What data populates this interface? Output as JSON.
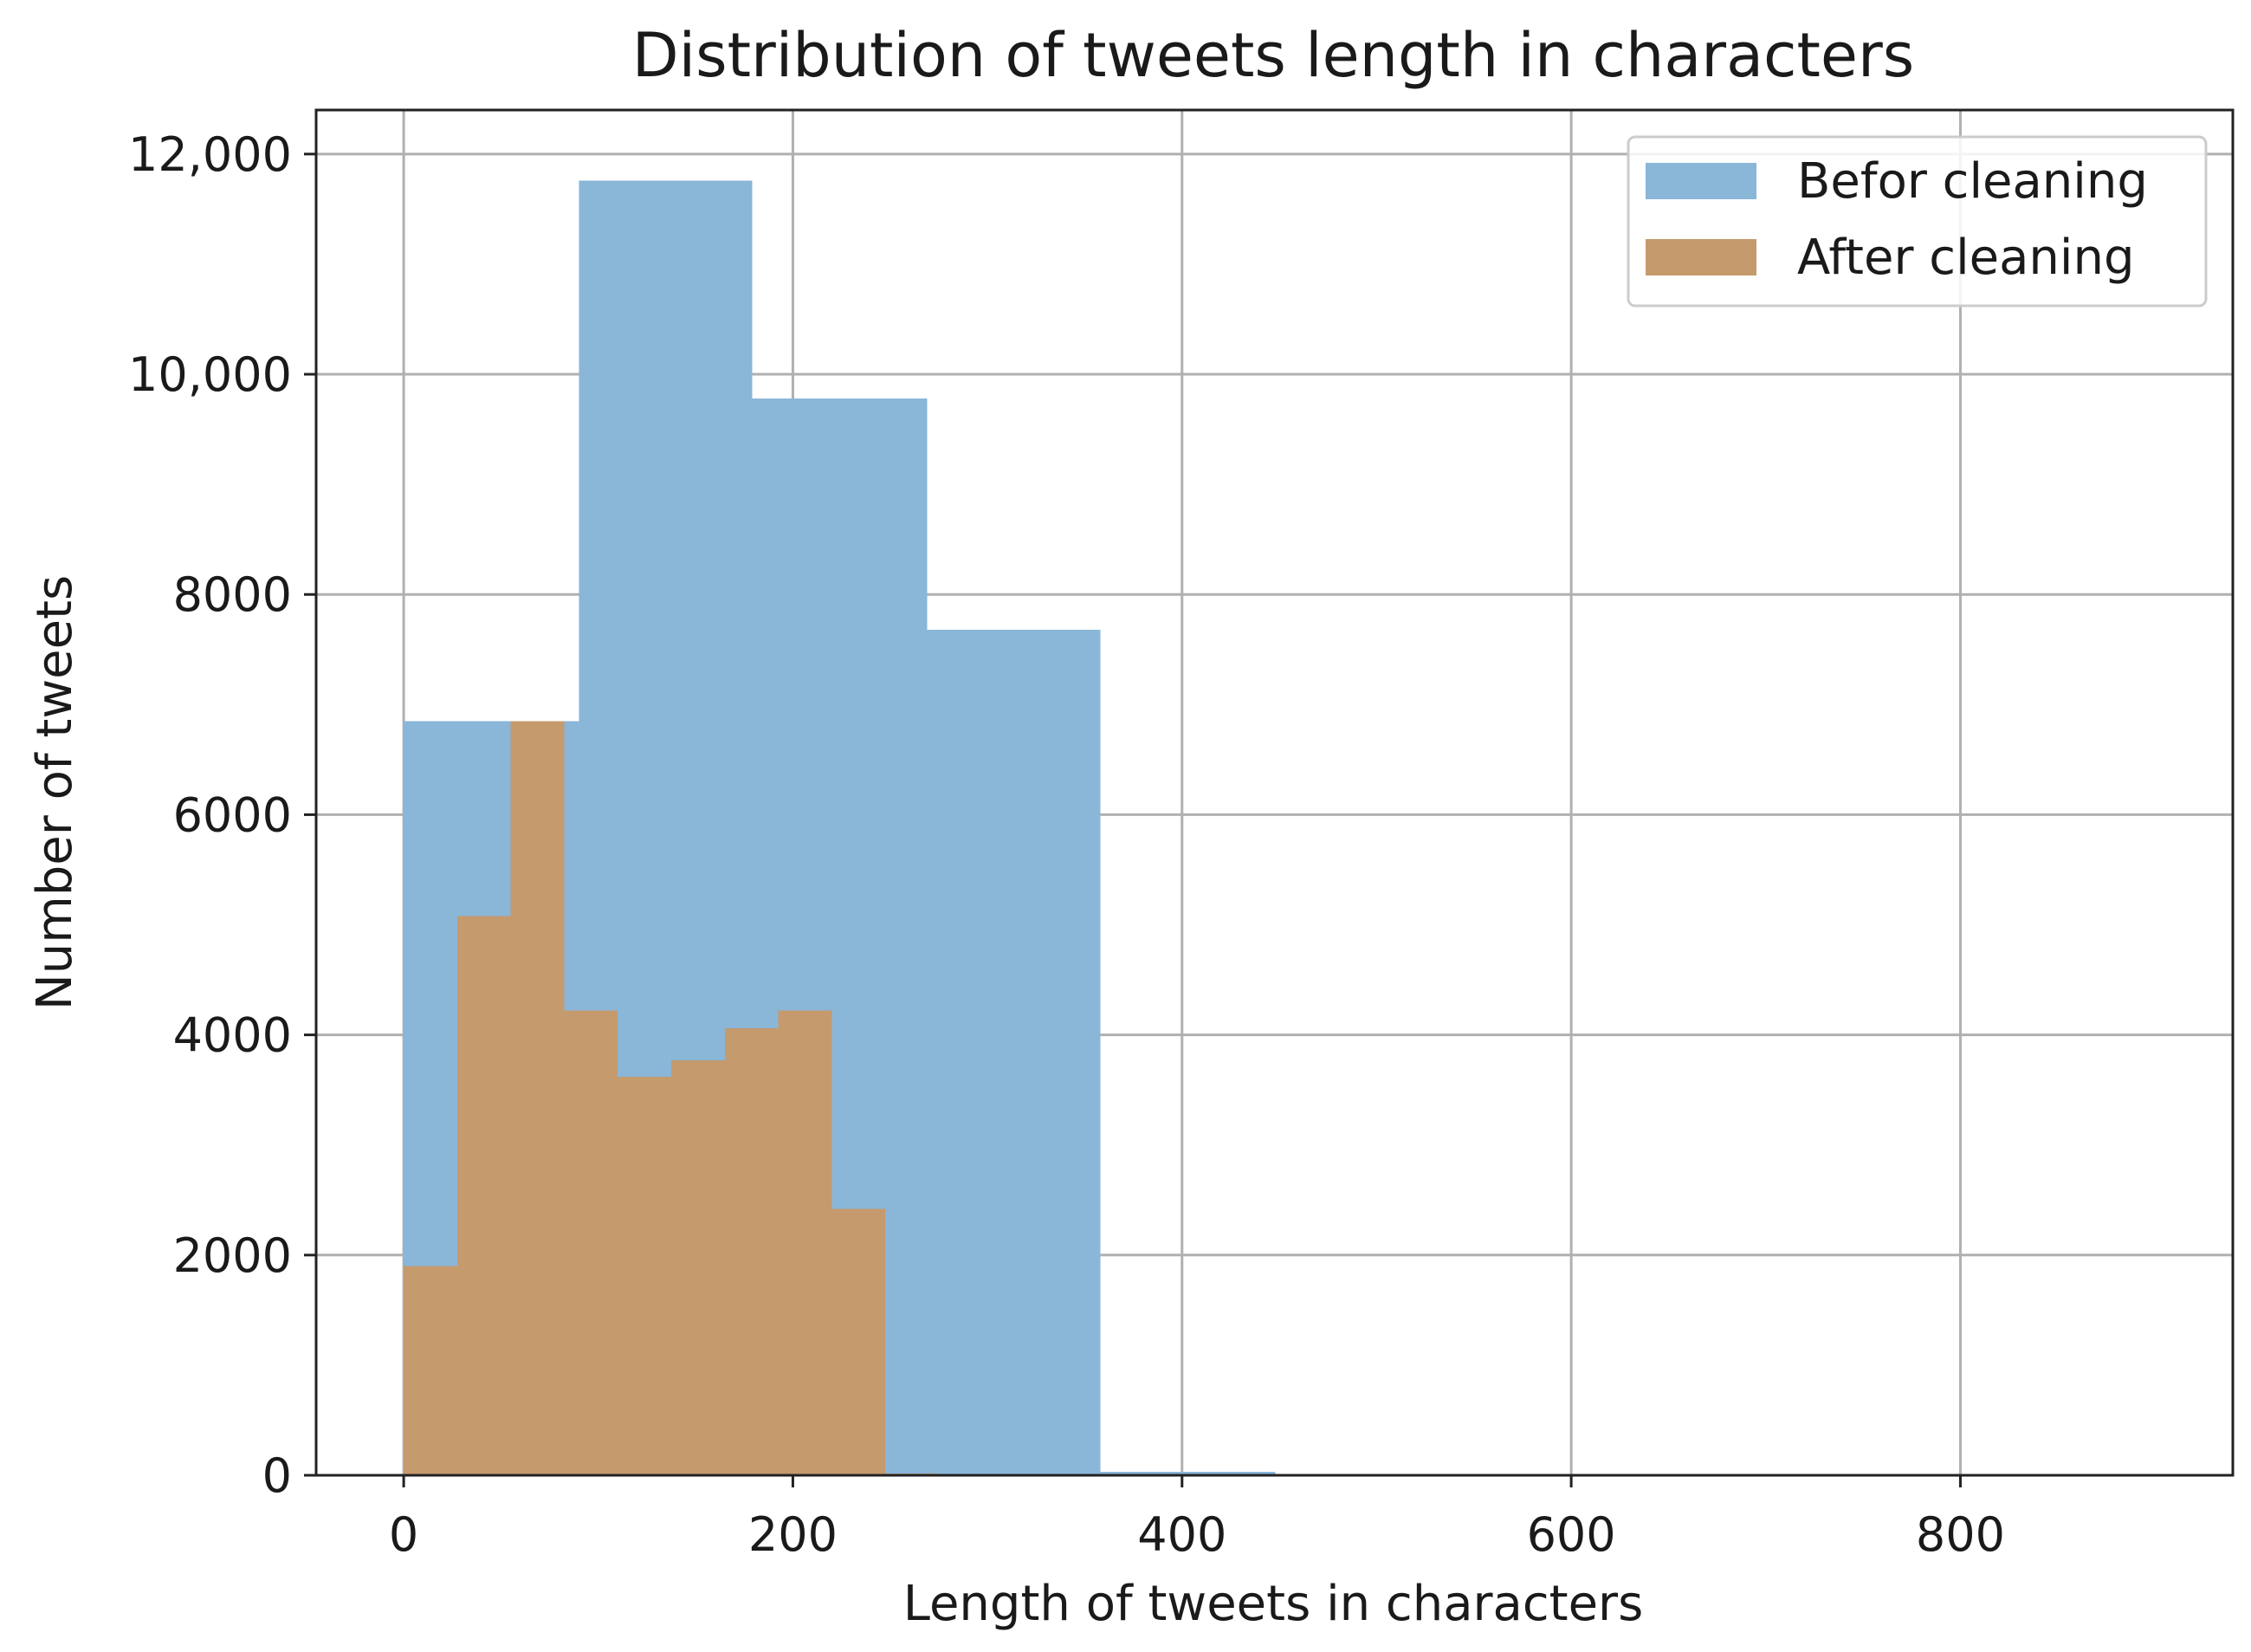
{
  "chart_data": {
    "type": "histogram",
    "title": "Distribution of tweets length in characters",
    "xlabel": "Length of tweets in characters",
    "ylabel": "Number of tweets",
    "xlim": [
      -45,
      940
    ],
    "ylim": [
      0,
      12400
    ],
    "xticks": [
      0,
      200,
      400,
      600,
      800
    ],
    "xtick_labels": [
      "0",
      "200",
      "400",
      "600",
      "800"
    ],
    "yticks": [
      0,
      2000,
      4000,
      6000,
      8000,
      10000,
      12000
    ],
    "ytick_labels": [
      "0",
      "2000",
      "4000",
      "6000",
      "8000",
      "10,000",
      "12,000"
    ],
    "grid": true,
    "legend_position": "top-right",
    "series": [
      {
        "name": "Befor cleaning",
        "color": "#8ab6d8",
        "bins": [
          {
            "x0": 0,
            "x1": 90,
            "value": 6850
          },
          {
            "x0": 90,
            "x1": 179,
            "value": 11760
          },
          {
            "x0": 179,
            "x1": 269,
            "value": 9780
          },
          {
            "x0": 269,
            "x1": 358,
            "value": 7680
          },
          {
            "x0": 358,
            "x1": 448,
            "value": 30
          }
        ]
      },
      {
        "name": "After cleaning",
        "color": "#c59a6d",
        "bins": [
          {
            "x0": 0,
            "x1": 27.5,
            "value": 1900
          },
          {
            "x0": 27.5,
            "x1": 55,
            "value": 5080
          },
          {
            "x0": 55,
            "x1": 82.5,
            "value": 6850
          },
          {
            "x0": 82.5,
            "x1": 110,
            "value": 4220
          },
          {
            "x0": 110,
            "x1": 137.5,
            "value": 3620
          },
          {
            "x0": 137.5,
            "x1": 165,
            "value": 3770
          },
          {
            "x0": 165,
            "x1": 192.5,
            "value": 4060
          },
          {
            "x0": 192.5,
            "x1": 220,
            "value": 4220
          },
          {
            "x0": 220,
            "x1": 247.5,
            "value": 2420
          },
          {
            "x0": 247.5,
            "x1": 275,
            "value": 15
          }
        ]
      }
    ]
  }
}
